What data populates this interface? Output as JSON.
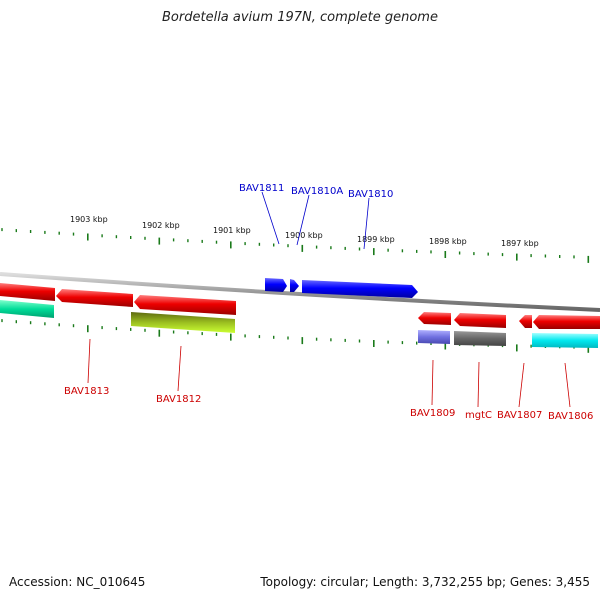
{
  "title": "Bordetella avium 197N, complete genome",
  "footer": {
    "accession": "Accession: NC_010645",
    "summary": "Topology: circular; Length: 3,732,255 bp; Genes: 3,455"
  },
  "ruler": {
    "labels": [
      "1903 kbp",
      "1902 kbp",
      "1901 kbp",
      "1900 kbp",
      "1899 kbp",
      "1898 kbp",
      "1897 kbp"
    ]
  },
  "genes_forward": [
    "BAV1811",
    "BAV1810A",
    "BAV1810"
  ],
  "genes_reverse": [
    "BAV1813",
    "BAV1812",
    "BAV1809",
    "mgtC",
    "BAV1807",
    "BAV1806"
  ],
  "colors": {
    "forward_label": "#0000cc",
    "reverse_label": "#cc0000",
    "forward_gene": "#0000ff",
    "reverse_gene": "#e60000",
    "tick": "#1a7a1a",
    "backbone": "#888888"
  }
}
